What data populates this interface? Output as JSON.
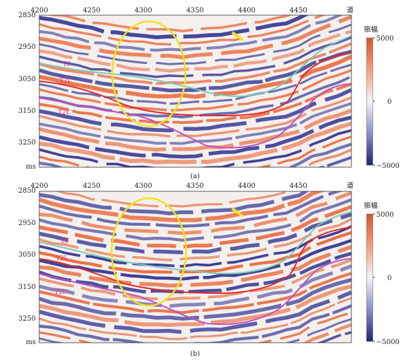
{
  "panels": [
    {
      "caption": "(a)",
      "x_ticks": [
        "4200",
        "4250",
        "4300",
        "4350",
        "4400",
        "4450"
      ],
      "x_unit": "道",
      "y_ticks": [
        "2850",
        "2950",
        "3050",
        "3150",
        "3250"
      ],
      "y_unit": "ms",
      "colorbar": {
        "title": "振幅",
        "max": "5000",
        "mid": "0",
        "min": "−5000"
      },
      "horizons": [
        "T8",
        "T2L",
        "T2L'"
      ]
    },
    {
      "caption": "(b)",
      "x_ticks": [
        "4200",
        "4250",
        "4300",
        "4350",
        "4400",
        "4450"
      ],
      "x_unit": "道",
      "y_ticks": [
        "2850",
        "2950",
        "3050",
        "3150",
        "3250"
      ],
      "y_unit": "ms",
      "colorbar": {
        "title": "振幅",
        "max": "5000",
        "mid": "0",
        "min": "−5000"
      },
      "horizons": [
        "T8",
        "T2L",
        "T2L'"
      ]
    }
  ],
  "colors": {
    "positive": "#e8693a",
    "negative": "#2b2f8f",
    "horizon_t8": "#7ec8b8",
    "horizon_t2l": "#e02a2a",
    "horizon_t2l_prime": "#c050c0",
    "ellipse": "#f2e21a",
    "arrow": "#f2e21a"
  }
}
